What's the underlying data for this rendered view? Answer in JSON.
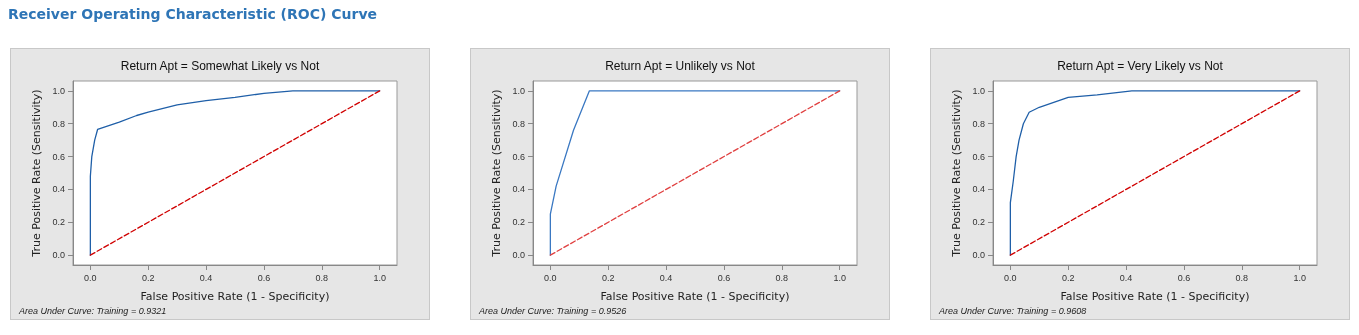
{
  "chart_data": [
    {
      "type": "other",
      "title": "Receiver Operating Characteristic (ROC) Curve"
    },
    {
      "type": "line",
      "title": "Return Apt = Somewhat Likely vs Not",
      "xlabel": "False Positive Rate (1 - Specificity)",
      "ylabel": "True Positive Rate (Sensitivity)",
      "annotations": [
        "Area Under Curve: Training = 0.9321"
      ],
      "xlim": [
        -0.06,
        1.06
      ],
      "ylim": [
        -0.06,
        1.06
      ],
      "xticks": [
        {
          "value": 0,
          "label": "0.0"
        },
        {
          "value": 0.2,
          "label": "0.2"
        },
        {
          "value": 0.4,
          "label": "0.4"
        },
        {
          "value": 0.6,
          "label": "0.6"
        },
        {
          "value": 0.8,
          "label": "0.8"
        },
        {
          "value": 1,
          "label": "1.0"
        }
      ],
      "yticks": [
        {
          "value": 0,
          "label": "0.0"
        },
        {
          "value": 0.2,
          "label": "0.2"
        },
        {
          "value": 0.4,
          "label": "0.4"
        },
        {
          "value": 0.6,
          "label": "0.6"
        },
        {
          "value": 0.8,
          "label": "0.8"
        },
        {
          "value": 1,
          "label": "1.0"
        }
      ],
      "grid": false,
      "marker": "none",
      "series": [
        {
          "color": "#1f5fa8",
          "line_style": "solid",
          "x": [
            0,
            0,
            0.005,
            0.015,
            0.025,
            0.1,
            0.16,
            0.2,
            0.3,
            0.4,
            0.5,
            0.6,
            0.7,
            1
          ],
          "values": [
            0,
            0.48,
            0.6,
            0.7,
            0.765,
            0.81,
            0.85,
            0.87,
            0.915,
            0.94,
            0.96,
            0.985,
            1,
            1
          ]
        },
        {
          "color": "#d00000",
          "line_style": "dashed",
          "x": [
            0,
            1
          ],
          "values": [
            0,
            1
          ]
        }
      ]
    },
    {
      "type": "line",
      "title": "Return Apt = Unlikely vs Not",
      "xlabel": "False Positive Rate (1 - Specificity)",
      "ylabel": "True Positive Rate (Sensitivity)",
      "annotations": [
        "Area Under Curve: Training = 0.9526"
      ],
      "xlim": [
        -0.06,
        1.06
      ],
      "ylim": [
        -0.06,
        1.06
      ],
      "xticks": [
        {
          "value": 0,
          "label": "0.0"
        },
        {
          "value": 0.2,
          "label": "0.2"
        },
        {
          "value": 0.4,
          "label": "0.4"
        },
        {
          "value": 0.6,
          "label": "0.6"
        },
        {
          "value": 0.8,
          "label": "0.8"
        },
        {
          "value": 1,
          "label": "1.0"
        }
      ],
      "yticks": [
        {
          "value": 0,
          "label": "0.0"
        },
        {
          "value": 0.2,
          "label": "0.2"
        },
        {
          "value": 0.4,
          "label": "0.4"
        },
        {
          "value": 0.6,
          "label": "0.6"
        },
        {
          "value": 0.8,
          "label": "0.8"
        },
        {
          "value": 1,
          "label": "1.0"
        }
      ],
      "grid": false,
      "marker": "none",
      "series": [
        {
          "color": "#3a78c2",
          "line_style": "solid",
          "x": [
            0,
            0,
            0.02,
            0.08,
            0.135,
            1
          ],
          "values": [
            0,
            0.25,
            0.42,
            0.76,
            1,
            1
          ]
        },
        {
          "color": "#e04040",
          "line_style": "dashed",
          "x": [
            0,
            1
          ],
          "values": [
            0,
            1
          ]
        }
      ]
    },
    {
      "type": "line",
      "title": "Return Apt = Very Likely vs Not",
      "xlabel": "False Positive Rate (1 - Specificity)",
      "ylabel": "True Positive Rate (Sensitivity)",
      "annotations": [
        "Area Under Curve: Training = 0.9608"
      ],
      "xlim": [
        -0.06,
        1.06
      ],
      "ylim": [
        -0.06,
        1.06
      ],
      "xticks": [
        {
          "value": 0,
          "label": "0.0"
        },
        {
          "value": 0.2,
          "label": "0.2"
        },
        {
          "value": 0.4,
          "label": "0.4"
        },
        {
          "value": 0.6,
          "label": "0.6"
        },
        {
          "value": 0.8,
          "label": "0.8"
        },
        {
          "value": 1,
          "label": "1.0"
        }
      ],
      "yticks": [
        {
          "value": 0,
          "label": "0.0"
        },
        {
          "value": 0.2,
          "label": "0.2"
        },
        {
          "value": 0.4,
          "label": "0.4"
        },
        {
          "value": 0.6,
          "label": "0.6"
        },
        {
          "value": 0.8,
          "label": "0.8"
        },
        {
          "value": 1,
          "label": "1.0"
        }
      ],
      "grid": false,
      "marker": "none",
      "series": [
        {
          "color": "#1f5fa8",
          "line_style": "solid",
          "x": [
            0,
            0,
            0.01,
            0.02,
            0.03,
            0.045,
            0.065,
            0.1,
            0.15,
            0.2,
            0.3,
            0.42,
            1
          ],
          "values": [
            0,
            0.32,
            0.45,
            0.6,
            0.7,
            0.8,
            0.87,
            0.9,
            0.93,
            0.96,
            0.975,
            1,
            1
          ]
        },
        {
          "color": "#d00000",
          "line_style": "dashed",
          "x": [
            0,
            1
          ],
          "values": [
            0,
            1
          ]
        }
      ]
    }
  ]
}
